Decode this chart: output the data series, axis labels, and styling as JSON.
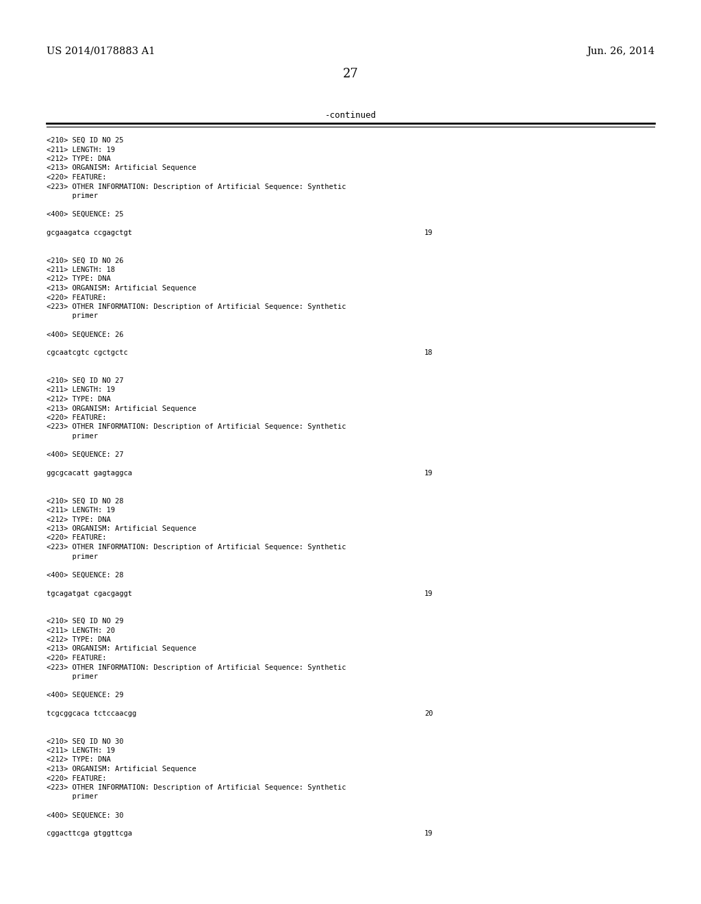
{
  "background_color": "#ffffff",
  "header_left": "US 2014/0178883 A1",
  "header_right": "Jun. 26, 2014",
  "page_number": "27",
  "continued_label": "-continued",
  "monospace_fontsize": 7.5,
  "header_fontsize": 10.5,
  "page_num_fontsize": 13,
  "content_lines": [
    {
      "text": "<210> SEQ ID NO 25",
      "num": null
    },
    {
      "text": "<211> LENGTH: 19",
      "num": null
    },
    {
      "text": "<212> TYPE: DNA",
      "num": null
    },
    {
      "text": "<213> ORGANISM: Artificial Sequence",
      "num": null
    },
    {
      "text": "<220> FEATURE:",
      "num": null
    },
    {
      "text": "<223> OTHER INFORMATION: Description of Artificial Sequence: Synthetic",
      "num": null
    },
    {
      "text": "      primer",
      "num": null
    },
    {
      "text": "",
      "num": null
    },
    {
      "text": "<400> SEQUENCE: 25",
      "num": null
    },
    {
      "text": "",
      "num": null
    },
    {
      "text": "gcgaagatca ccgagctgt",
      "num": "19"
    },
    {
      "text": "",
      "num": null
    },
    {
      "text": "",
      "num": null
    },
    {
      "text": "<210> SEQ ID NO 26",
      "num": null
    },
    {
      "text": "<211> LENGTH: 18",
      "num": null
    },
    {
      "text": "<212> TYPE: DNA",
      "num": null
    },
    {
      "text": "<213> ORGANISM: Artificial Sequence",
      "num": null
    },
    {
      "text": "<220> FEATURE:",
      "num": null
    },
    {
      "text": "<223> OTHER INFORMATION: Description of Artificial Sequence: Synthetic",
      "num": null
    },
    {
      "text": "      primer",
      "num": null
    },
    {
      "text": "",
      "num": null
    },
    {
      "text": "<400> SEQUENCE: 26",
      "num": null
    },
    {
      "text": "",
      "num": null
    },
    {
      "text": "cgcaatcgtc cgctgctc",
      "num": "18"
    },
    {
      "text": "",
      "num": null
    },
    {
      "text": "",
      "num": null
    },
    {
      "text": "<210> SEQ ID NO 27",
      "num": null
    },
    {
      "text": "<211> LENGTH: 19",
      "num": null
    },
    {
      "text": "<212> TYPE: DNA",
      "num": null
    },
    {
      "text": "<213> ORGANISM: Artificial Sequence",
      "num": null
    },
    {
      "text": "<220> FEATURE:",
      "num": null
    },
    {
      "text": "<223> OTHER INFORMATION: Description of Artificial Sequence: Synthetic",
      "num": null
    },
    {
      "text": "      primer",
      "num": null
    },
    {
      "text": "",
      "num": null
    },
    {
      "text": "<400> SEQUENCE: 27",
      "num": null
    },
    {
      "text": "",
      "num": null
    },
    {
      "text": "ggcgcacatt gagtaggca",
      "num": "19"
    },
    {
      "text": "",
      "num": null
    },
    {
      "text": "",
      "num": null
    },
    {
      "text": "<210> SEQ ID NO 28",
      "num": null
    },
    {
      "text": "<211> LENGTH: 19",
      "num": null
    },
    {
      "text": "<212> TYPE: DNA",
      "num": null
    },
    {
      "text": "<213> ORGANISM: Artificial Sequence",
      "num": null
    },
    {
      "text": "<220> FEATURE:",
      "num": null
    },
    {
      "text": "<223> OTHER INFORMATION: Description of Artificial Sequence: Synthetic",
      "num": null
    },
    {
      "text": "      primer",
      "num": null
    },
    {
      "text": "",
      "num": null
    },
    {
      "text": "<400> SEQUENCE: 28",
      "num": null
    },
    {
      "text": "",
      "num": null
    },
    {
      "text": "tgcagatgat cgacgaggt",
      "num": "19"
    },
    {
      "text": "",
      "num": null
    },
    {
      "text": "",
      "num": null
    },
    {
      "text": "<210> SEQ ID NO 29",
      "num": null
    },
    {
      "text": "<211> LENGTH: 20",
      "num": null
    },
    {
      "text": "<212> TYPE: DNA",
      "num": null
    },
    {
      "text": "<213> ORGANISM: Artificial Sequence",
      "num": null
    },
    {
      "text": "<220> FEATURE:",
      "num": null
    },
    {
      "text": "<223> OTHER INFORMATION: Description of Artificial Sequence: Synthetic",
      "num": null
    },
    {
      "text": "      primer",
      "num": null
    },
    {
      "text": "",
      "num": null
    },
    {
      "text": "<400> SEQUENCE: 29",
      "num": null
    },
    {
      "text": "",
      "num": null
    },
    {
      "text": "tcgcggcaca tctccaacgg",
      "num": "20"
    },
    {
      "text": "",
      "num": null
    },
    {
      "text": "",
      "num": null
    },
    {
      "text": "<210> SEQ ID NO 30",
      "num": null
    },
    {
      "text": "<211> LENGTH: 19",
      "num": null
    },
    {
      "text": "<212> TYPE: DNA",
      "num": null
    },
    {
      "text": "<213> ORGANISM: Artificial Sequence",
      "num": null
    },
    {
      "text": "<220> FEATURE:",
      "num": null
    },
    {
      "text": "<223> OTHER INFORMATION: Description of Artificial Sequence: Synthetic",
      "num": null
    },
    {
      "text": "      primer",
      "num": null
    },
    {
      "text": "",
      "num": null
    },
    {
      "text": "<400> SEQUENCE: 30",
      "num": null
    },
    {
      "text": "",
      "num": null
    },
    {
      "text": "cggacttcga gtggttcga",
      "num": "19"
    }
  ]
}
